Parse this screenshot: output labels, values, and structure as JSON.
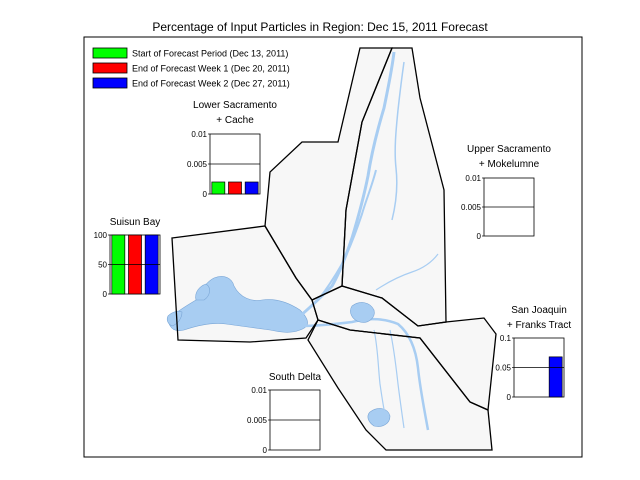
{
  "title": "Percentage of Input Particles in Region: Dec 15, 2011 Forecast",
  "legend": [
    {
      "label": "Start of Forecast Period (Dec 13, 2011)",
      "color": "#00ff00"
    },
    {
      "label": "End of Forecast Week 1 (Dec 20, 2011)",
      "color": "#ff0000"
    },
    {
      "label": "End of Forecast Week 2 (Dec 27, 2011)",
      "color": "#0000ff"
    }
  ],
  "map_colors": {
    "water": "#a8cdf2",
    "land": "#f7f7f7",
    "border": "#000000"
  },
  "chart_data": [
    {
      "type": "bar",
      "title": "Lower Sacramento + Cache",
      "title_lines": [
        "Lower Sacramento",
        "+ Cache"
      ],
      "ylim": [
        0,
        0.01
      ],
      "yticks": [
        "0",
        "0.005",
        "0.01"
      ],
      "series": [
        {
          "name": "Start of Forecast Period (Dec 13, 2011)",
          "values": [
            0.002
          ]
        },
        {
          "name": "End of Forecast Week 1 (Dec 20, 2011)",
          "values": [
            0.002
          ]
        },
        {
          "name": "End of Forecast Week 2 (Dec 27, 2011)",
          "values": [
            0.002
          ]
        }
      ]
    },
    {
      "type": "bar",
      "title": "Upper Sacramento + Mokelumne",
      "title_lines": [
        "Upper Sacramento",
        "+ Mokelumne"
      ],
      "ylim": [
        0,
        0.01
      ],
      "yticks": [
        "0",
        "0.005",
        "0.01"
      ],
      "series": [
        {
          "name": "Start of Forecast Period (Dec 13, 2011)",
          "values": [
            0
          ]
        },
        {
          "name": "End of Forecast Week 1 (Dec 20, 2011)",
          "values": [
            0
          ]
        },
        {
          "name": "End of Forecast Week 2 (Dec 27, 2011)",
          "values": [
            0
          ]
        }
      ]
    },
    {
      "type": "bar",
      "title": "Suisun Bay",
      "title_lines": [
        "Suisun Bay"
      ],
      "ylim": [
        0,
        100
      ],
      "yticks": [
        "0",
        "50",
        "100"
      ],
      "series": [
        {
          "name": "Start of Forecast Period (Dec 13, 2011)",
          "values": [
            100
          ]
        },
        {
          "name": "End of Forecast Week 1 (Dec 20, 2011)",
          "values": [
            100
          ]
        },
        {
          "name": "End of Forecast Week 2 (Dec 27, 2011)",
          "values": [
            100
          ]
        }
      ]
    },
    {
      "type": "bar",
      "title": "San Joaquin + Franks Tract",
      "title_lines": [
        "San Joaquin",
        "+ Franks Tract"
      ],
      "ylim": [
        0,
        0.1
      ],
      "yticks": [
        "0",
        "0.05",
        "0.1"
      ],
      "series": [
        {
          "name": "Start of Forecast Period (Dec 13, 2011)",
          "values": [
            0
          ]
        },
        {
          "name": "End of Forecast Week 1 (Dec 20, 2011)",
          "values": [
            0
          ]
        },
        {
          "name": "End of Forecast Week 2 (Dec 27, 2011)",
          "values": [
            0.068
          ]
        }
      ]
    },
    {
      "type": "bar",
      "title": "South Delta",
      "title_lines": [
        "South Delta"
      ],
      "ylim": [
        0,
        0.01
      ],
      "yticks": [
        "0",
        "0.005",
        "0.01"
      ],
      "series": [
        {
          "name": "Start of Forecast Period (Dec 13, 2011)",
          "values": [
            0
          ]
        },
        {
          "name": "End of Forecast Week 1 (Dec 20, 2011)",
          "values": [
            0
          ]
        },
        {
          "name": "End of Forecast Week 2 (Dec 27, 2011)",
          "values": [
            0
          ]
        }
      ]
    }
  ]
}
